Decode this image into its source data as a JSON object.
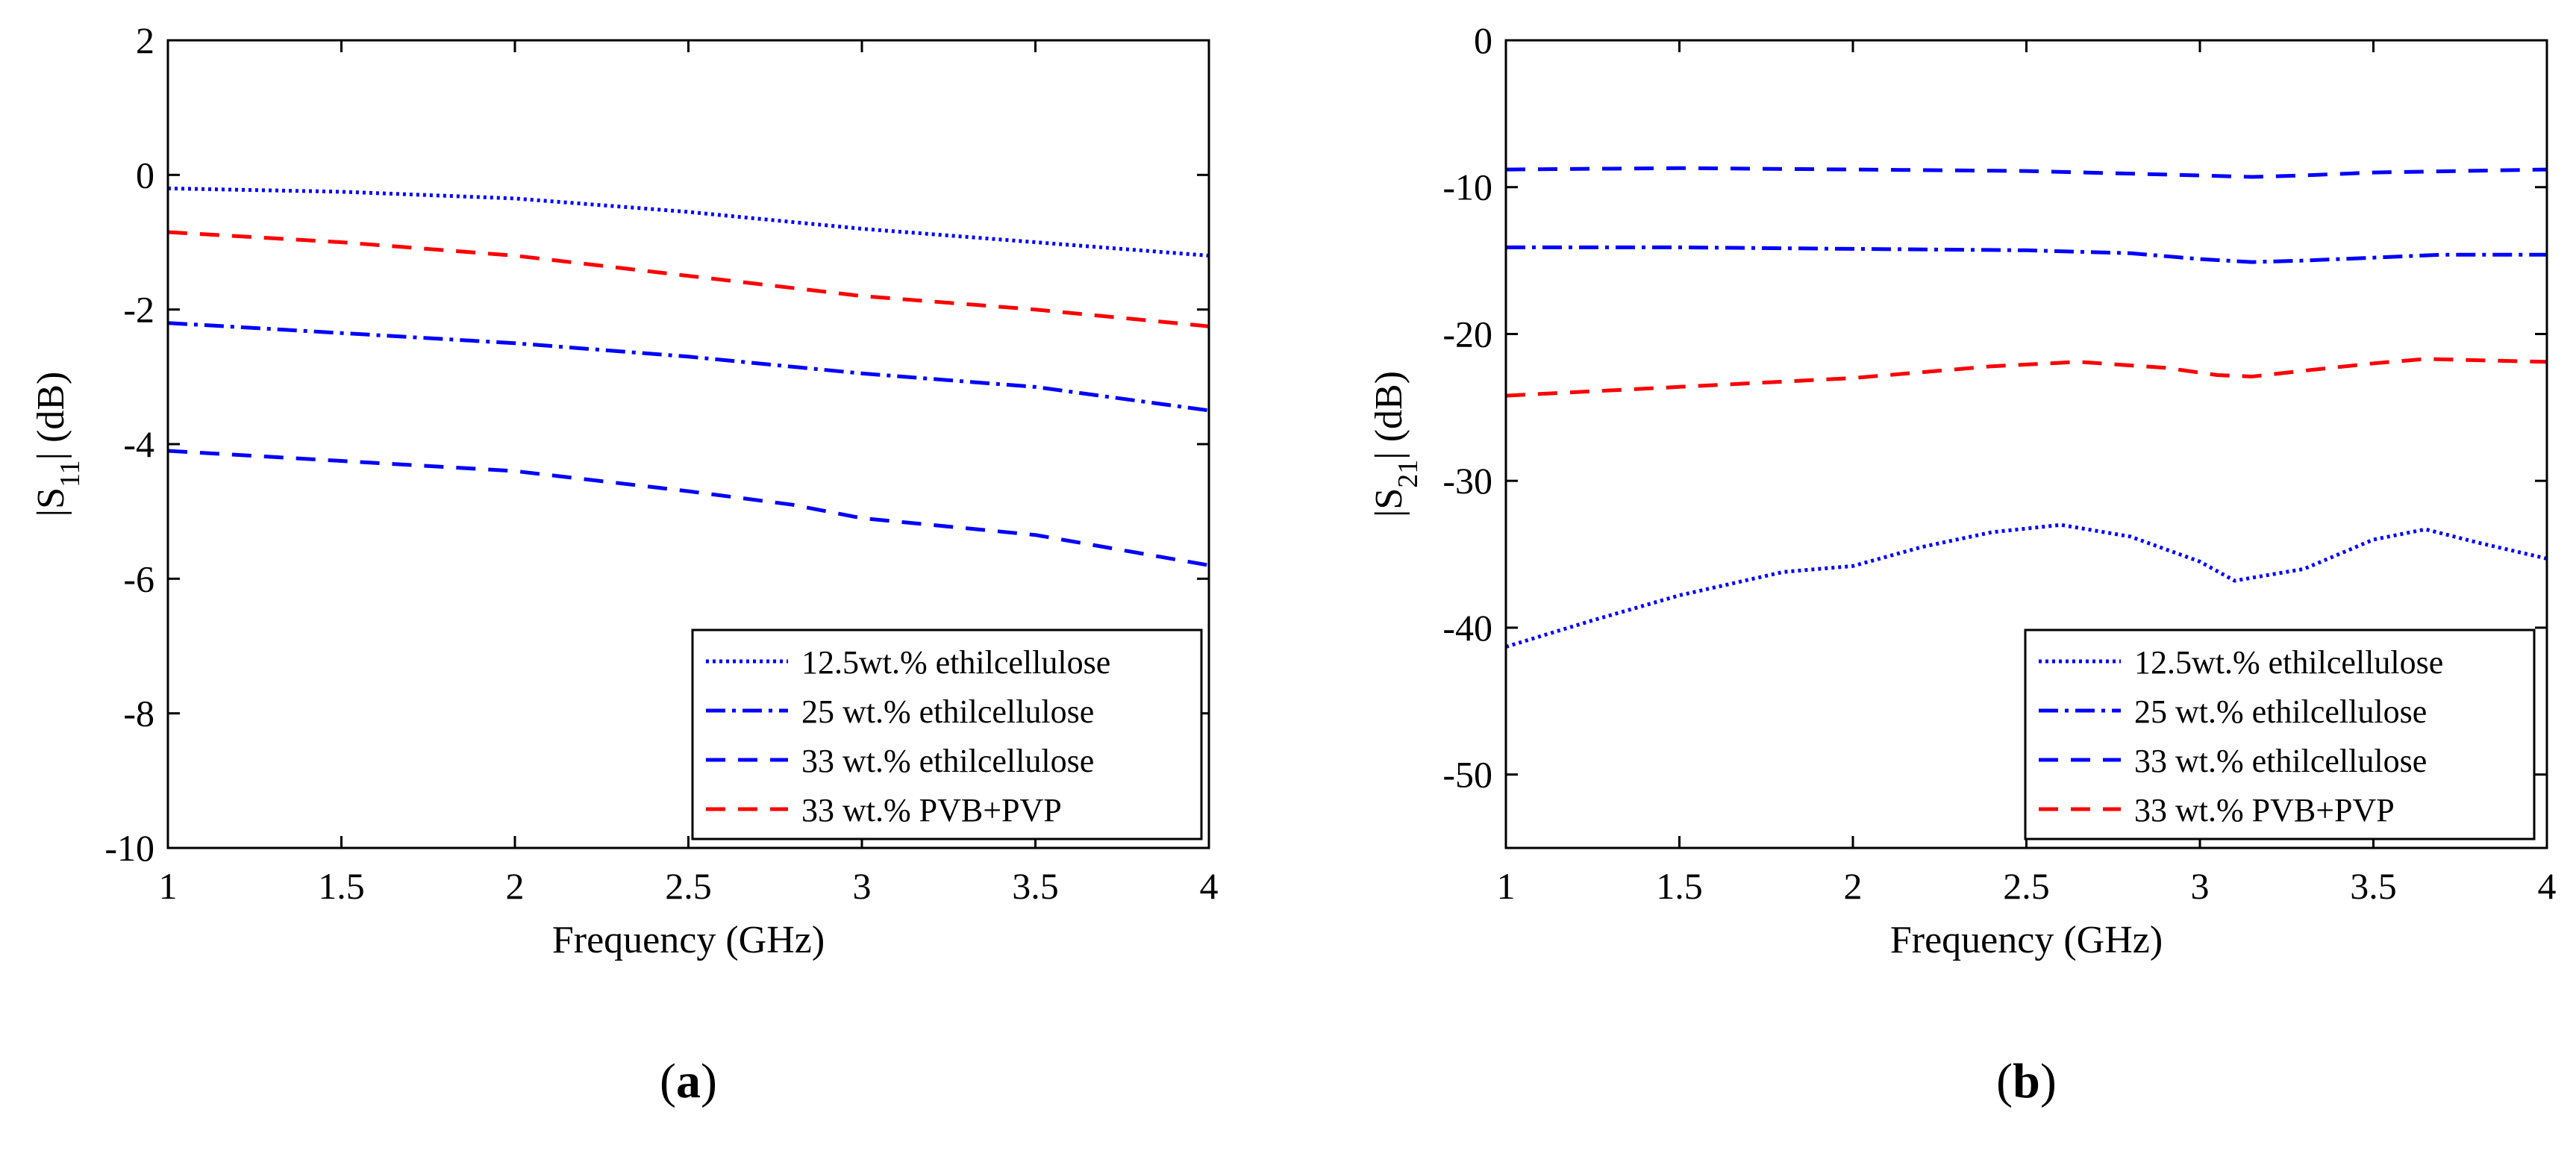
{
  "chart_data": [
    {
      "panel_label": "(a)",
      "type": "line",
      "title": "",
      "xlabel": "Frequency (GHz)",
      "ylabel": {
        "prefix": "|S",
        "sub": "11",
        "suffix": "| (dB)"
      },
      "xlim": [
        1,
        4
      ],
      "ylim": [
        -10,
        2
      ],
      "xticks": [
        1,
        1.5,
        2,
        2.5,
        3,
        3.5,
        4
      ],
      "xtick_labels": [
        "1",
        "1.5",
        "2",
        "2.5",
        "3",
        "3.5",
        "4"
      ],
      "yticks": [
        -10,
        -8,
        -6,
        -4,
        -2,
        0,
        2
      ],
      "ytick_labels": [
        "-10",
        "-8",
        "-6",
        "-4",
        "-2",
        "0",
        "2"
      ],
      "grid": false,
      "legend_position": "bottom-right",
      "series": [
        {
          "name": "12.5wt.% ethilcellulose",
          "color": "#0000ff",
          "dash": "dotted",
          "x": [
            1,
            1.5,
            2,
            2.5,
            3,
            3.5,
            4
          ],
          "y": [
            -0.2,
            -0.25,
            -0.35,
            -0.55,
            -0.8,
            -1.0,
            -1.2
          ]
        },
        {
          "name": "25 wt.% ethilcellulose",
          "color": "#0000ff",
          "dash": "dashdot",
          "x": [
            1,
            1.5,
            2,
            2.5,
            3,
            3.5,
            4
          ],
          "y": [
            -2.2,
            -2.35,
            -2.5,
            -2.7,
            -2.95,
            -3.15,
            -3.5
          ]
        },
        {
          "name": "33 wt.% ethilcellulose",
          "color": "#0000ff",
          "dash": "dashed",
          "x": [
            1,
            1.5,
            2,
            2.5,
            2.8,
            3,
            3.5,
            4
          ],
          "y": [
            -4.1,
            -4.25,
            -4.4,
            -4.7,
            -4.9,
            -5.1,
            -5.35,
            -5.8
          ]
        },
        {
          "name": "33 wt.% PVB+PVP",
          "color": "#ff0000",
          "dash": "dashed",
          "x": [
            1,
            1.5,
            2,
            2.5,
            3,
            3.5,
            4
          ],
          "y": [
            -0.85,
            -1.0,
            -1.2,
            -1.5,
            -1.8,
            -2.0,
            -2.25
          ]
        }
      ]
    },
    {
      "panel_label": "(b)",
      "type": "line",
      "title": "",
      "xlabel": "Frequency (GHz)",
      "ylabel": {
        "prefix": "|S",
        "sub": "21",
        "suffix": "| (dB)"
      },
      "xlim": [
        1,
        4
      ],
      "ylim": [
        -55,
        0
      ],
      "xticks": [
        1,
        1.5,
        2,
        2.5,
        3,
        3.5,
        4
      ],
      "xtick_labels": [
        "1",
        "1.5",
        "2",
        "2.5",
        "3",
        "3.5",
        "4"
      ],
      "yticks": [
        -50,
        -40,
        -30,
        -20,
        -10,
        0
      ],
      "ytick_labels": [
        "-50",
        "-40",
        "-30",
        "-20",
        "-10",
        "0"
      ],
      "grid": false,
      "legend_position": "bottom-right",
      "series": [
        {
          "name": "12.5wt.% ethilcellulose",
          "color": "#0000ff",
          "dash": "dotted",
          "x": [
            1,
            1.25,
            1.5,
            1.8,
            2.0,
            2.2,
            2.4,
            2.6,
            2.8,
            3.0,
            3.1,
            3.3,
            3.5,
            3.65,
            3.8,
            4.0
          ],
          "y": [
            -41.3,
            -39.5,
            -37.8,
            -36.2,
            -35.8,
            -34.5,
            -33.5,
            -33.0,
            -33.8,
            -35.5,
            -36.8,
            -36.0,
            -34.0,
            -33.3,
            -34.2,
            -35.3
          ]
        },
        {
          "name": "25 wt.% ethilcellulose",
          "color": "#0000ff",
          "dash": "dashdot",
          "x": [
            1,
            1.5,
            2,
            2.5,
            2.8,
            3.0,
            3.15,
            3.3,
            3.5,
            3.7,
            4.0
          ],
          "y": [
            -14.1,
            -14.1,
            -14.2,
            -14.3,
            -14.5,
            -14.9,
            -15.1,
            -15.0,
            -14.8,
            -14.6,
            -14.6
          ]
        },
        {
          "name": "33 wt.% ethilcellulose",
          "color": "#0000ff",
          "dash": "dashed",
          "x": [
            1,
            1.5,
            2,
            2.5,
            3.0,
            3.15,
            3.3,
            3.5,
            4.0
          ],
          "y": [
            -8.8,
            -8.7,
            -8.8,
            -8.9,
            -9.2,
            -9.3,
            -9.2,
            -9.0,
            -8.8
          ]
        },
        {
          "name": "33 wt.% PVB+PVP",
          "color": "#ff0000",
          "dash": "dashed",
          "x": [
            1,
            1.5,
            2,
            2.4,
            2.65,
            2.9,
            3.05,
            3.15,
            3.3,
            3.5,
            3.65,
            4.0
          ],
          "y": [
            -24.2,
            -23.6,
            -23.0,
            -22.2,
            -21.9,
            -22.3,
            -22.8,
            -22.9,
            -22.5,
            -22.0,
            -21.7,
            -21.9
          ]
        }
      ]
    }
  ]
}
